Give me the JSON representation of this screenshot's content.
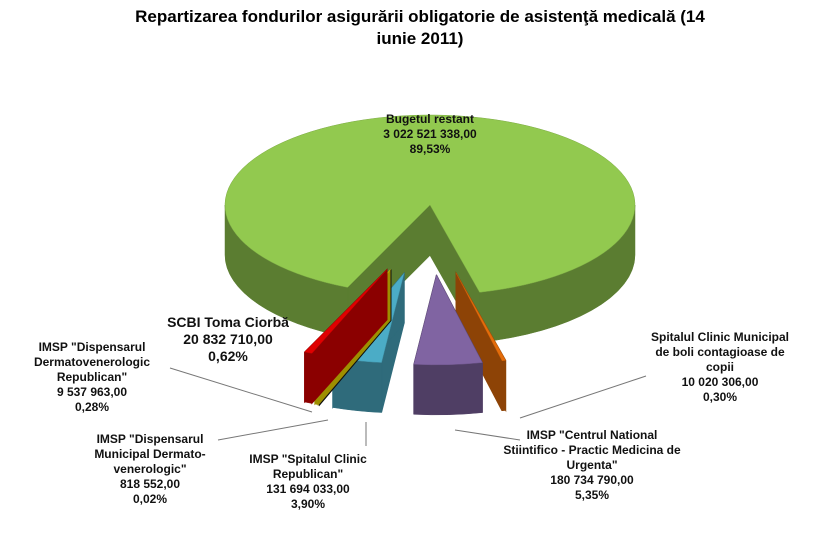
{
  "chart_data": {
    "type": "pie3d",
    "title": "Repartizarea fondurilor asigurării obligatorie de asistenţă medicală (14 iunie 2011)",
    "categories": [
      "Bugetul restant",
      "Spitalul Clinic Municipal de boli contagioase de copii",
      "IMSP \"Centrul National Stiintifico - Practic Medicina de Urgenta\"",
      "IMSP \"Spitalul Clinic Republican\"",
      "IMSP \"Dispensarul Municipal Dermato-venerologic\"",
      "IMSP \"Dispensarul Dermatovenerologic Republican\"",
      "SCBI Toma Ciorbă"
    ],
    "values": [
      3022521338.0,
      10020306.0,
      180734790.0,
      131694033.0,
      818552.0,
      9537963.0,
      20832710.0
    ],
    "value_labels": [
      "3 022 521 338,00",
      "10 020 306,00",
      "180 734 790,00",
      "131 694 033,00",
      "818 552,00",
      "9 537 963,00",
      "20 832 710,00"
    ],
    "percents": [
      89.53,
      0.3,
      5.35,
      3.9,
      0.02,
      0.28,
      0.62
    ],
    "percent_labels": [
      "89,53%",
      "0,30%",
      "5,35%",
      "3,90%",
      "0,02%",
      "0,28%",
      "0,62%"
    ],
    "colors": [
      "#92c94f",
      "#e46c0a",
      "#8064a2",
      "#4bacc6",
      "#1a1a1a",
      "#ffe600",
      "#e00000"
    ],
    "exploded": [
      false,
      true,
      true,
      true,
      true,
      true,
      true
    ]
  }
}
